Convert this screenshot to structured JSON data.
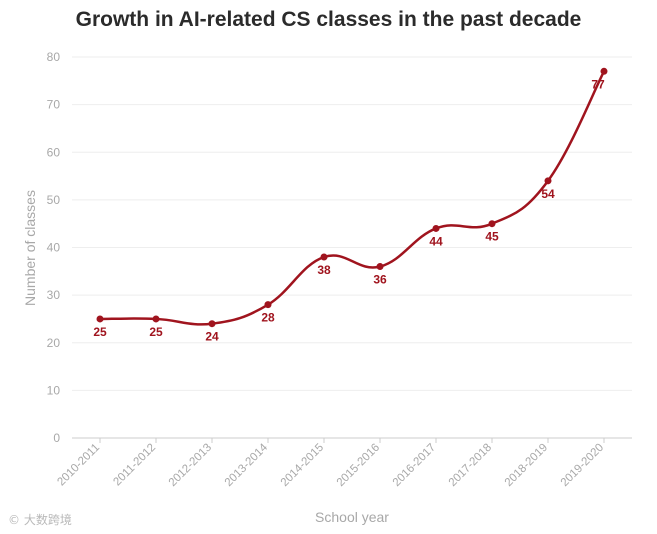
{
  "chart_data": {
    "type": "line",
    "title": "Growth in AI-related CS classes in the past decade",
    "xlabel": "School year",
    "ylabel": "Number of classes",
    "categories": [
      "2010-2011",
      "2011-2012",
      "2012-2013",
      "2013-2014",
      "2014-2015",
      "2015-2016",
      "2016-2017",
      "2017-2018",
      "2018-2019",
      "2019-2020"
    ],
    "series": [
      {
        "name": "Number of classes",
        "values": [
          25,
          25,
          24,
          28,
          38,
          36,
          44,
          45,
          54,
          77
        ]
      }
    ],
    "data_labels": [
      "25",
      "25",
      "24",
      "28",
      "38",
      "36",
      "44",
      "45",
      "54",
      "77"
    ],
    "ylim": [
      0,
      80
    ],
    "yticks": [
      0,
      10,
      20,
      30,
      40,
      50,
      60,
      70,
      80
    ],
    "ytick_labels": [
      "0",
      "10",
      "20",
      "30",
      "40",
      "50",
      "60",
      "70",
      "80"
    ],
    "grid": true,
    "legend": "none",
    "line_color": "#a0141e",
    "grid_color": "#eeeeee",
    "axis_text_color": "#a8a8a8"
  },
  "watermark": "© 大数跨境"
}
